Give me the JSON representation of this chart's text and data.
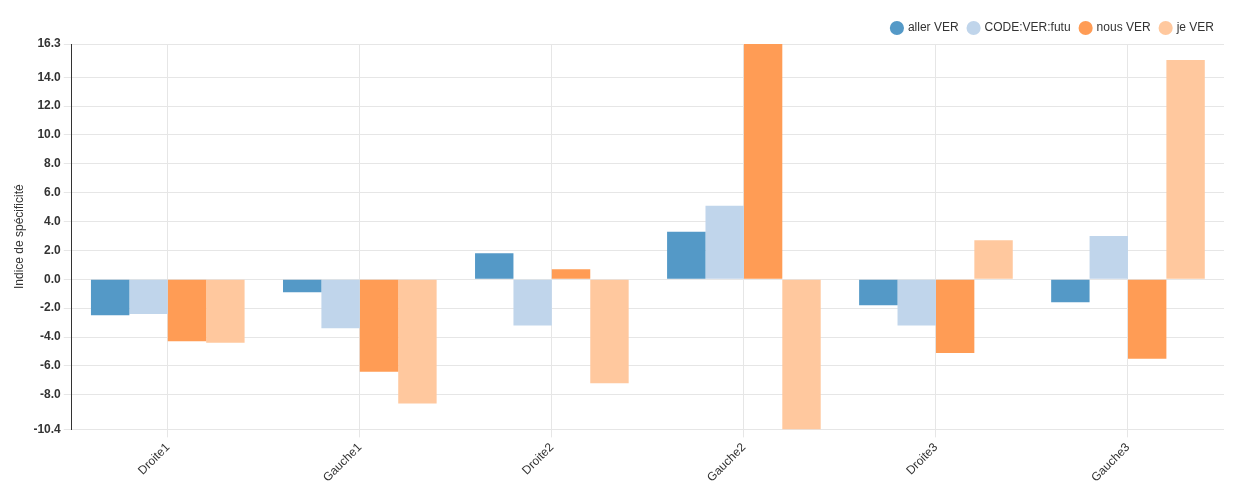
{
  "chart_data": {
    "type": "bar",
    "ylabel": "Indice de spécificité",
    "categories": [
      "Droite1",
      "Gauche1",
      "Droite2",
      "Gauche2",
      "Droite3",
      "Gauche3"
    ],
    "series": [
      {
        "name": "aller VER",
        "color": "#5499c7",
        "values": [
          -2.5,
          -0.9,
          1.8,
          3.3,
          -1.8,
          -1.6
        ]
      },
      {
        "name": "CODE:VER:futu",
        "color": "#c0d5eb",
        "values": [
          -2.4,
          -3.4,
          -3.2,
          5.1,
          -3.2,
          3.0
        ]
      },
      {
        "name": "nous VER",
        "color": "#ff9c55",
        "values": [
          -4.3,
          -6.4,
          0.7,
          16.3,
          -5.1,
          -5.5
        ]
      },
      {
        "name": "je VER",
        "color": "#ffc89e",
        "values": [
          -4.4,
          -8.6,
          -7.2,
          -10.4,
          2.7,
          15.2
        ]
      }
    ],
    "ylim": [
      -10.4,
      16.3
    ],
    "yticks": [
      -10.4,
      {
        "value": -8,
        "label": "-8.0"
      },
      {
        "value": -6,
        "label": "-6.0"
      },
      {
        "value": -4,
        "label": "-4.0"
      },
      {
        "value": -2,
        "label": "-2.0"
      },
      {
        "value": 0,
        "label": "0.0"
      },
      {
        "value": 2,
        "label": "2.0"
      },
      {
        "value": 4,
        "label": "4.0"
      },
      {
        "value": 6,
        "label": "6.0"
      },
      {
        "value": 8,
        "label": "8.0"
      },
      {
        "value": 10,
        "label": "10.0"
      },
      {
        "value": 12,
        "label": "12.0"
      },
      {
        "value": 14,
        "label": "14.0"
      },
      16.3
    ],
    "grid": true,
    "legend": "top right"
  }
}
